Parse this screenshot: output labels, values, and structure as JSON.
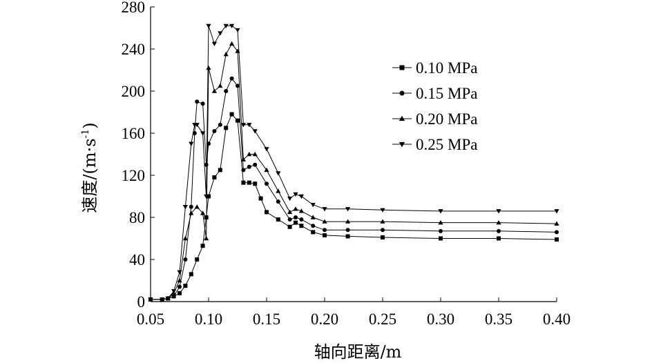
{
  "chart_data": {
    "type": "line",
    "title": "",
    "xlabel": "轴向距离/m",
    "ylabel": "速度/(m·s",
    "ylabel_superscript": "-1",
    "ylabel_close": ")",
    "xlim": [
      0.05,
      0.4
    ],
    "ylim": [
      0,
      280
    ],
    "x_ticks": [
      "0.05",
      "0.10",
      "0.15",
      "0.20",
      "0.25",
      "0.30",
      "0.35",
      "0.40"
    ],
    "y_ticks": [
      "0",
      "40",
      "80",
      "120",
      "160",
      "200",
      "240",
      "280"
    ],
    "grid": false,
    "legend_position": "top-right",
    "series": [
      {
        "name": "0.10 MPa",
        "marker": "square",
        "points": [
          [
            0.05,
            2
          ],
          [
            0.06,
            2
          ],
          [
            0.065,
            3
          ],
          [
            0.07,
            5
          ],
          [
            0.075,
            8
          ],
          [
            0.08,
            15
          ],
          [
            0.085,
            26
          ],
          [
            0.09,
            40
          ],
          [
            0.095,
            53
          ],
          [
            0.098,
            80
          ],
          [
            0.1,
            100
          ],
          [
            0.105,
            118
          ],
          [
            0.11,
            125
          ],
          [
            0.115,
            165
          ],
          [
            0.12,
            178
          ],
          [
            0.125,
            172
          ],
          [
            0.13,
            113
          ],
          [
            0.135,
            113
          ],
          [
            0.14,
            112
          ],
          [
            0.145,
            98
          ],
          [
            0.15,
            85
          ],
          [
            0.16,
            78
          ],
          [
            0.17,
            71
          ],
          [
            0.175,
            75
          ],
          [
            0.18,
            72
          ],
          [
            0.19,
            66
          ],
          [
            0.2,
            63
          ],
          [
            0.22,
            62
          ],
          [
            0.25,
            61
          ],
          [
            0.3,
            60
          ],
          [
            0.35,
            60
          ],
          [
            0.4,
            59
          ]
        ]
      },
      {
        "name": "0.15 MPa",
        "marker": "circle",
        "points": [
          [
            0.05,
            2
          ],
          [
            0.06,
            2
          ],
          [
            0.065,
            3
          ],
          [
            0.07,
            5
          ],
          [
            0.075,
            14
          ],
          [
            0.08,
            40
          ],
          [
            0.085,
            90
          ],
          [
            0.088,
            160
          ],
          [
            0.09,
            190
          ],
          [
            0.095,
            188
          ],
          [
            0.098,
            130
          ],
          [
            0.1,
            150
          ],
          [
            0.105,
            162
          ],
          [
            0.11,
            168
          ],
          [
            0.115,
            200
          ],
          [
            0.12,
            212
          ],
          [
            0.125,
            205
          ],
          [
            0.13,
            125
          ],
          [
            0.135,
            128
          ],
          [
            0.14,
            130
          ],
          [
            0.15,
            112
          ],
          [
            0.16,
            95
          ],
          [
            0.17,
            78
          ],
          [
            0.175,
            80
          ],
          [
            0.18,
            78
          ],
          [
            0.19,
            72
          ],
          [
            0.2,
            68
          ],
          [
            0.22,
            68
          ],
          [
            0.25,
            68
          ],
          [
            0.3,
            67
          ],
          [
            0.35,
            67
          ],
          [
            0.4,
            66
          ]
        ]
      },
      {
        "name": "0.20 MPa",
        "marker": "triangle-up",
        "points": [
          [
            0.05,
            2
          ],
          [
            0.06,
            2
          ],
          [
            0.065,
            3
          ],
          [
            0.07,
            8
          ],
          [
            0.075,
            20
          ],
          [
            0.08,
            60
          ],
          [
            0.085,
            84
          ],
          [
            0.09,
            90
          ],
          [
            0.095,
            84
          ],
          [
            0.098,
            60
          ],
          [
            0.1,
            222
          ],
          [
            0.105,
            200
          ],
          [
            0.11,
            205
          ],
          [
            0.115,
            235
          ],
          [
            0.12,
            245
          ],
          [
            0.125,
            238
          ],
          [
            0.13,
            135
          ],
          [
            0.135,
            140
          ],
          [
            0.14,
            140
          ],
          [
            0.15,
            125
          ],
          [
            0.16,
            105
          ],
          [
            0.17,
            85
          ],
          [
            0.175,
            88
          ],
          [
            0.18,
            86
          ],
          [
            0.19,
            80
          ],
          [
            0.2,
            76
          ],
          [
            0.22,
            76
          ],
          [
            0.25,
            76
          ],
          [
            0.3,
            75
          ],
          [
            0.35,
            75
          ],
          [
            0.4,
            74
          ]
        ]
      },
      {
        "name": "0.25 MPa",
        "marker": "triangle-down",
        "points": [
          [
            0.05,
            2
          ],
          [
            0.06,
            2
          ],
          [
            0.065,
            3
          ],
          [
            0.07,
            10
          ],
          [
            0.075,
            28
          ],
          [
            0.08,
            90
          ],
          [
            0.085,
            150
          ],
          [
            0.088,
            168
          ],
          [
            0.09,
            168
          ],
          [
            0.095,
            160
          ],
          [
            0.098,
            100
          ],
          [
            0.1,
            262
          ],
          [
            0.105,
            245
          ],
          [
            0.11,
            255
          ],
          [
            0.115,
            262
          ],
          [
            0.12,
            262
          ],
          [
            0.125,
            258
          ],
          [
            0.13,
            168
          ],
          [
            0.135,
            168
          ],
          [
            0.14,
            162
          ],
          [
            0.15,
            145
          ],
          [
            0.16,
            122
          ],
          [
            0.17,
            98
          ],
          [
            0.175,
            102
          ],
          [
            0.18,
            100
          ],
          [
            0.19,
            92
          ],
          [
            0.2,
            88
          ],
          [
            0.22,
            88
          ],
          [
            0.25,
            87
          ],
          [
            0.3,
            86
          ],
          [
            0.35,
            86
          ],
          [
            0.4,
            86
          ]
        ]
      }
    ]
  }
}
